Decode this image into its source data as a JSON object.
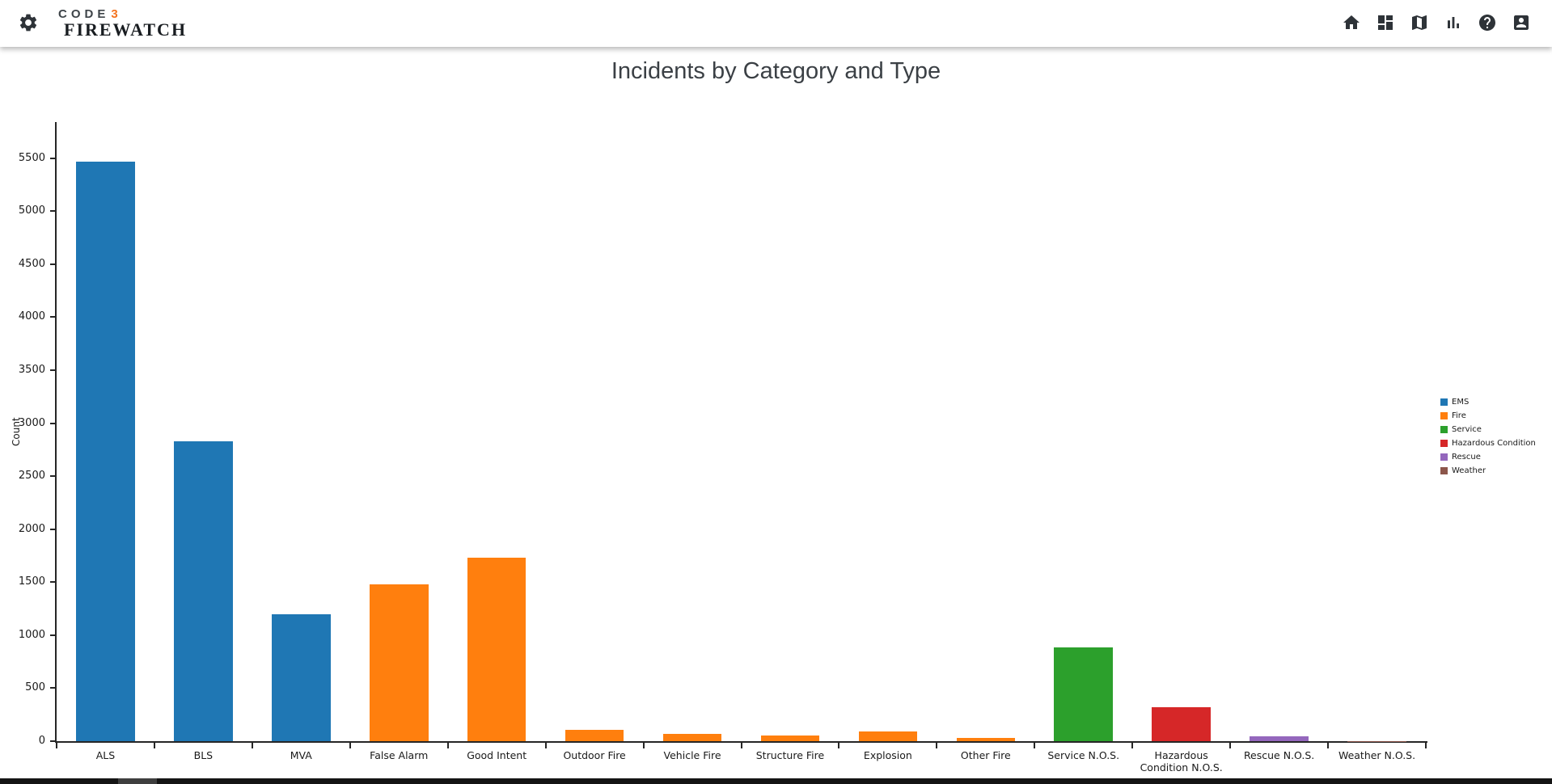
{
  "header": {
    "logo": {
      "code": "CODE",
      "three": "3",
      "name": "FIREWATCH"
    },
    "nav_icons": [
      "home-icon",
      "dashboard-icon",
      "map-icon",
      "bar-chart-icon",
      "help-icon",
      "account-icon"
    ],
    "settings_icon": "gear-icon"
  },
  "page": {
    "title": "Incidents by Category and Type"
  },
  "chart_data": {
    "type": "bar",
    "title": "Incidents by Category and Type",
    "xlabel": "",
    "ylabel": "Count",
    "ylim": [
      0,
      5840
    ],
    "yticks": [
      0,
      500,
      1000,
      1500,
      2000,
      2500,
      3000,
      3500,
      4000,
      4500,
      5000,
      5500
    ],
    "grid": false,
    "legend_position": "right",
    "categories": [
      "ALS",
      "BLS",
      "MVA",
      "False Alarm",
      "Good Intent",
      "Outdoor Fire",
      "Vehicle Fire",
      "Structure Fire",
      "Explosion",
      "Other Fire",
      "Service N.O.S.",
      "Hazardous Condition N.O.S.",
      "Rescue N.O.S.",
      "Weather N.O.S."
    ],
    "values": [
      5470,
      2830,
      1200,
      1480,
      1730,
      110,
      65,
      55,
      90,
      30,
      885,
      320,
      45,
      2
    ],
    "series_by_category": [
      "EMS",
      "EMS",
      "EMS",
      "Fire",
      "Fire",
      "Fire",
      "Fire",
      "Fire",
      "Fire",
      "Fire",
      "Service",
      "Hazardous Condition",
      "Rescue",
      "Weather"
    ],
    "legend": [
      "EMS",
      "Fire",
      "Service",
      "Hazardous Condition",
      "Rescue",
      "Weather"
    ],
    "series_colors": {
      "EMS": "#1f77b4",
      "Fire": "#ff7f0e",
      "Service": "#2ca02c",
      "Hazardous Condition": "#d62728",
      "Rescue": "#9467bd",
      "Weather": "#8c564b"
    }
  },
  "colors": {
    "accent_orange": "#f4731f",
    "icon": "#2e3338",
    "axis": "#262626",
    "title_text": "#3b4045"
  }
}
